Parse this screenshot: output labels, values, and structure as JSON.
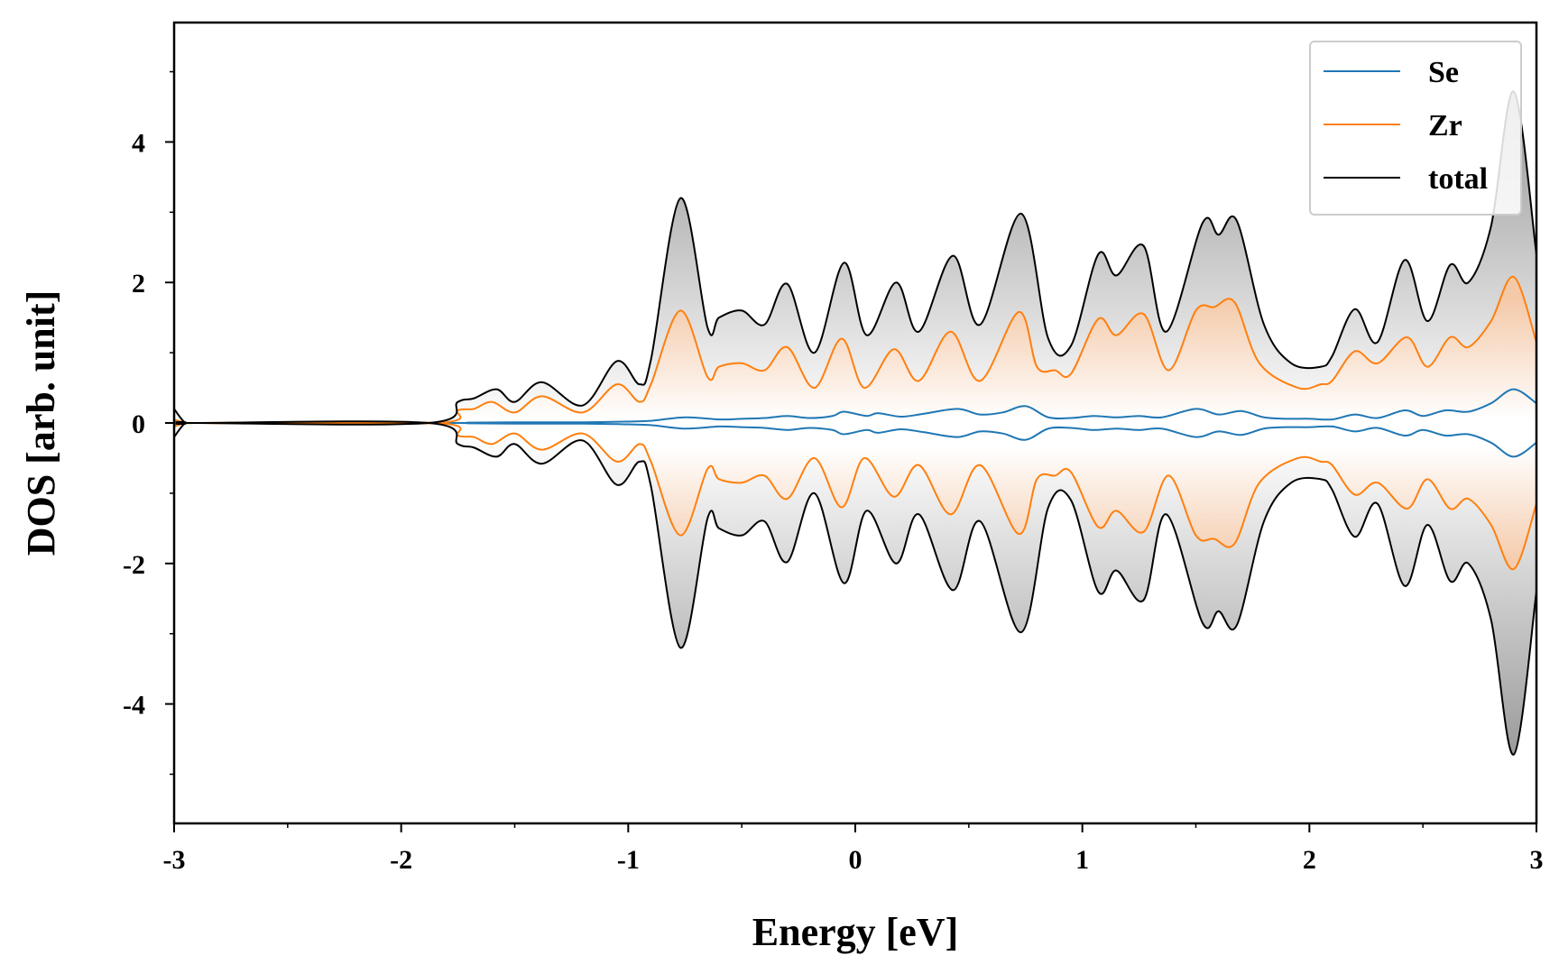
{
  "chart_data": {
    "type": "line",
    "title": "",
    "xlabel": "Energy [eV]",
    "ylabel": "DOS [arb. unit]",
    "xlim": [
      -3,
      3
    ],
    "ylim": [
      -5.7,
      5.7
    ],
    "x_ticks": [
      -3,
      -2,
      -1,
      0,
      1,
      2,
      3
    ],
    "x_tick_labels": [
      "-3",
      "-2",
      "-1",
      "0",
      "1",
      "2",
      "3"
    ],
    "y_ticks": [
      -4,
      -2,
      0,
      2,
      4
    ],
    "y_tick_labels": [
      "-4",
      "-2",
      "0",
      "2",
      "4"
    ],
    "grid": false,
    "legend_position": "top-right",
    "mirrored_about_zero": true,
    "fill": "gradient shading between +total and -total",
    "series": [
      {
        "name": "Se",
        "color": "#1f77b4",
        "x": [
          -3.0,
          -2.95,
          -2.9,
          -1.8,
          -1.7,
          -1.5,
          -1.2,
          -1.0,
          -0.9,
          -0.75,
          -0.6,
          -0.5,
          -0.4,
          -0.3,
          -0.2,
          -0.1,
          -0.05,
          0.05,
          0.1,
          0.2,
          0.3,
          0.45,
          0.55,
          0.65,
          0.75,
          0.85,
          0.95,
          1.05,
          1.15,
          1.25,
          1.35,
          1.5,
          1.6,
          1.7,
          1.8,
          1.9,
          2.0,
          2.1,
          2.2,
          2.3,
          2.42,
          2.5,
          2.6,
          2.7,
          2.8,
          2.9,
          3.0
        ],
        "values": [
          0.02,
          0.0,
          0.0,
          0.0,
          0.005,
          0.01,
          0.01,
          0.02,
          0.03,
          0.08,
          0.05,
          0.06,
          0.07,
          0.1,
          0.07,
          0.1,
          0.16,
          0.1,
          0.14,
          0.09,
          0.13,
          0.2,
          0.12,
          0.15,
          0.24,
          0.08,
          0.07,
          0.1,
          0.08,
          0.1,
          0.08,
          0.2,
          0.12,
          0.17,
          0.08,
          0.06,
          0.06,
          0.05,
          0.12,
          0.07,
          0.18,
          0.1,
          0.18,
          0.16,
          0.28,
          0.48,
          0.28
        ]
      },
      {
        "name": "Zr",
        "color": "#ff7f0e",
        "x": [
          -3.0,
          -2.95,
          -2.9,
          -1.85,
          -1.75,
          -1.68,
          -1.6,
          -1.5,
          -1.38,
          -1.2,
          -1.05,
          -0.95,
          -0.9,
          -0.77,
          -0.65,
          -0.6,
          -0.5,
          -0.4,
          -0.3,
          -0.18,
          -0.06,
          0.04,
          0.17,
          0.28,
          0.42,
          0.55,
          0.72,
          0.8,
          0.88,
          0.95,
          1.07,
          1.15,
          1.27,
          1.38,
          1.5,
          1.58,
          1.67,
          1.78,
          1.95,
          2.05,
          2.1,
          2.2,
          2.3,
          2.43,
          2.52,
          2.62,
          2.7,
          2.8,
          2.9,
          3.0
        ],
        "values": [
          0.05,
          0.0,
          0.0,
          0.0,
          0.18,
          0.2,
          0.3,
          0.15,
          0.38,
          0.15,
          0.55,
          0.3,
          0.55,
          1.6,
          0.65,
          0.8,
          0.85,
          0.75,
          1.08,
          0.5,
          1.2,
          0.5,
          1.05,
          0.6,
          1.3,
          0.6,
          1.58,
          0.8,
          0.75,
          0.7,
          1.48,
          1.25,
          1.55,
          0.75,
          1.6,
          1.65,
          1.72,
          0.85,
          0.5,
          0.55,
          0.6,
          1.02,
          0.85,
          1.22,
          0.8,
          1.22,
          1.08,
          1.45,
          2.08,
          1.15
        ]
      },
      {
        "name": "total",
        "color": "#000000",
        "x": [
          -3.0,
          -2.95,
          -2.9,
          -1.88,
          -1.75,
          -1.68,
          -1.58,
          -1.5,
          -1.38,
          -1.2,
          -1.05,
          -0.95,
          -0.9,
          -0.77,
          -0.65,
          -0.6,
          -0.5,
          -0.4,
          -0.3,
          -0.18,
          -0.05,
          0.05,
          0.18,
          0.28,
          0.43,
          0.55,
          0.73,
          0.85,
          0.95,
          1.07,
          1.15,
          1.27,
          1.37,
          1.53,
          1.6,
          1.68,
          1.8,
          1.92,
          2.05,
          2.1,
          2.2,
          2.3,
          2.42,
          2.52,
          2.62,
          2.7,
          2.8,
          2.9,
          3.0
        ],
        "values": [
          0.2,
          0.0,
          0.0,
          0.0,
          0.3,
          0.35,
          0.48,
          0.3,
          0.58,
          0.25,
          0.88,
          0.55,
          0.9,
          3.2,
          1.35,
          1.5,
          1.6,
          1.4,
          1.98,
          1.0,
          2.28,
          1.25,
          2.0,
          1.3,
          2.38,
          1.4,
          2.98,
          1.2,
          1.1,
          2.4,
          2.1,
          2.52,
          1.3,
          2.85,
          2.68,
          2.88,
          1.4,
          0.85,
          0.8,
          0.95,
          1.62,
          1.15,
          2.32,
          1.45,
          2.25,
          2.0,
          2.8,
          4.72,
          2.4
        ]
      }
    ]
  }
}
